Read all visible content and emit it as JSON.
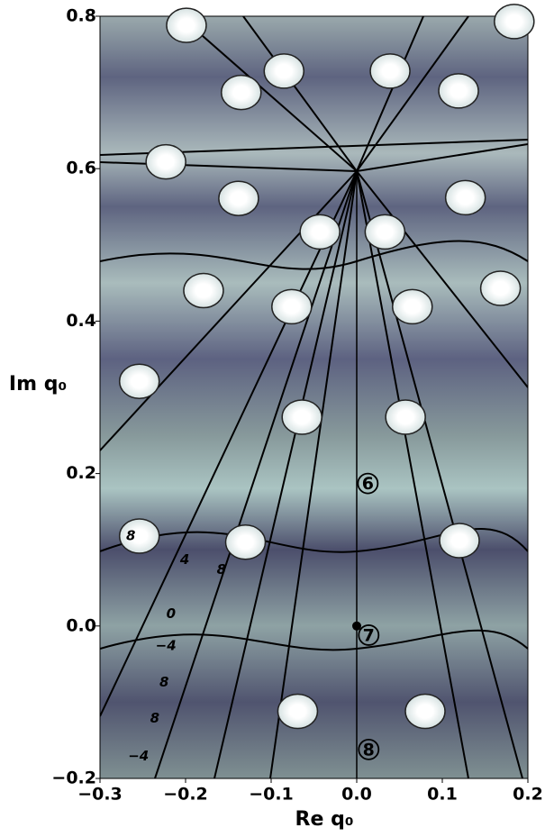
{
  "chart_data": {
    "type": "scatter",
    "xlabel": "Re q₀",
    "ylabel": "Im q₀",
    "xlim": [
      -0.3,
      0.2
    ],
    "ylim": [
      -0.2,
      0.8
    ],
    "xticks": [
      {
        "value": -0.3,
        "label": "−0.3"
      },
      {
        "value": -0.2,
        "label": "−0.2"
      },
      {
        "value": -0.1,
        "label": "−0.1"
      },
      {
        "value": 0,
        "label": "0.0"
      },
      0.1,
      0.2
    ],
    "yticks": [
      {
        "value": -0.2,
        "label": "−0.2"
      },
      {
        "value": 0,
        "label": "0.0"
      },
      0.2,
      0.4,
      0.6,
      0.8
    ],
    "points": {
      "color": "#ffffff",
      "x": [
        -0.254,
        -0.13,
        0.12,
        -0.069,
        0.08,
        -0.064,
        0.057,
        -0.076,
        0.065,
        -0.254,
        -0.179,
        0.168,
        -0.043,
        0.033,
        -0.138,
        0.127,
        -0.135,
        0.119,
        -0.085,
        0.039,
        -0.199,
        0.184,
        -0.223
      ],
      "y": [
        0.118,
        0.11,
        0.112,
        -0.112,
        -0.112,
        0.274,
        0.274,
        0.419,
        0.419,
        0.321,
        0.44,
        0.443,
        0.517,
        0.517,
        0.561,
        0.562,
        0.7,
        0.702,
        0.728,
        0.728,
        0.788,
        0.793,
        0.609
      ]
    },
    "markers": {
      "color": "#000000",
      "x": [
        0
      ],
      "y": [
        0
      ]
    },
    "annotations": [
      {
        "text": "6",
        "x": 0.013,
        "y": 0.187,
        "circled": true
      },
      {
        "text": "7",
        "x": 0.014,
        "y": -0.012,
        "circled": true
      },
      {
        "text": "8",
        "x": 0.014,
        "y": -0.162,
        "circled": true
      },
      {
        "text": "8",
        "x": -0.264,
        "y": 0.119,
        "circled": false
      },
      {
        "text": "4",
        "x": -0.201,
        "y": 0.088,
        "circled": false
      },
      {
        "text": "0",
        "x": -0.217,
        "y": 0.017,
        "circled": false
      },
      {
        "text": "−4",
        "x": -0.223,
        "y": -0.025,
        "circled": false
      },
      {
        "text": "8",
        "x": -0.225,
        "y": -0.073,
        "circled": false
      },
      {
        "text": "8",
        "x": -0.236,
        "y": -0.12,
        "circled": false
      },
      {
        "text": "−4",
        "x": -0.255,
        "y": -0.17,
        "circled": false
      },
      {
        "text": "8",
        "x": -0.158,
        "y": 0.075,
        "circled": false
      }
    ]
  }
}
